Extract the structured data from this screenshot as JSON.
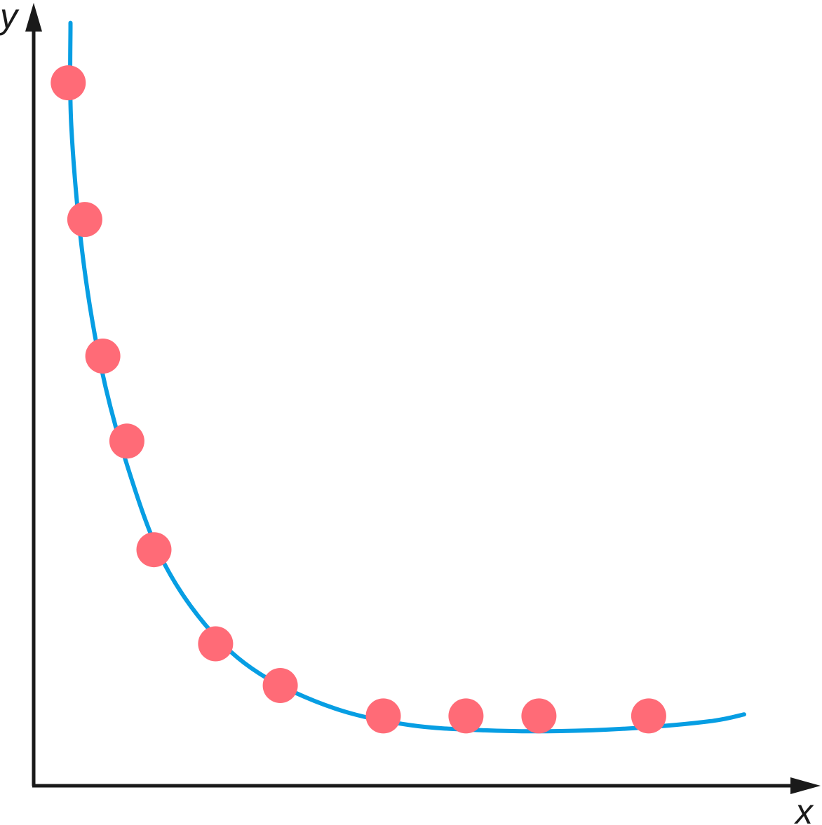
{
  "chart_data": {
    "type": "scatter",
    "title": "",
    "xlabel": "x",
    "ylabel": "y",
    "grid": false,
    "legend": "none",
    "xlim": [
      0,
      100
    ],
    "ylim": [
      0,
      100
    ],
    "points": [
      {
        "x": 4.6,
        "y": 92.6
      },
      {
        "x": 6.8,
        "y": 74.6
      },
      {
        "x": 9.2,
        "y": 56.6
      },
      {
        "x": 12.4,
        "y": 45.4
      },
      {
        "x": 16.0,
        "y": 31.1
      },
      {
        "x": 24.2,
        "y": 18.7
      },
      {
        "x": 32.8,
        "y": 13.2
      },
      {
        "x": 46.5,
        "y": 9.2
      },
      {
        "x": 57.5,
        "y": 9.2
      },
      {
        "x": 67.2,
        "y": 9.2
      },
      {
        "x": 81.8,
        "y": 9.2
      }
    ],
    "trend": {
      "name": "",
      "x": [
        4.9,
        5.0,
        6.5,
        9.0,
        12.5,
        17.0,
        23.0,
        30.0,
        40.0,
        50.0,
        60.0,
        70.0,
        80.0,
        90.0,
        94.5
      ],
      "y": [
        100.5,
        87.0,
        70.0,
        55.0,
        42.0,
        30.0,
        21.0,
        14.8,
        10.2,
        8.0,
        7.3,
        7.2,
        7.6,
        8.5,
        9.4
      ]
    },
    "colors": {
      "points": "#ff6b77",
      "trend": "#079ee3",
      "axes": "#1a1a1a"
    }
  }
}
